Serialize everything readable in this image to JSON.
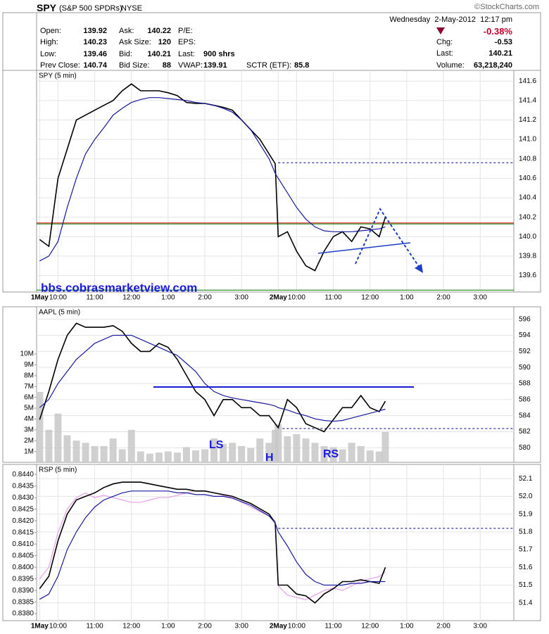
{
  "header": {
    "symbol": "SPY",
    "name": "(S&P 500 SPDRs)",
    "exchange": "NYSE",
    "credit": "©StockCharts.com",
    "date": "Wednesday  2-May-2012  12:17 pm",
    "change_pct": "-0.38%",
    "quotes": [
      [
        "Open:",
        "139.92",
        "Ask:",
        "140.22",
        "P/E:",
        ""
      ],
      [
        "High:",
        "140.23",
        "Ask Size:",
        "120",
        "EPS:",
        ""
      ],
      [
        "Low:",
        "139.46",
        "Bid:",
        "140.21",
        "Last:",
        "900 shrs"
      ],
      [
        "Prev Close:",
        "140.74",
        "Bid Size:",
        "88",
        "VWAP:",
        "139.91"
      ]
    ],
    "sctr": "SCTR (ETF):",
    "sctr_value": "85.8",
    "right": [
      [
        "Chg:",
        "-0.53"
      ],
      [
        "Last:",
        "140.21"
      ],
      [
        "Volume:",
        "63,218,240"
      ]
    ]
  },
  "chart_data": [
    {
      "type": "line",
      "title": "SPY (5 min)",
      "annotations": [
        "bbs.cobrasmarketview.com"
      ],
      "xlim": [
        -1,
        155
      ],
      "xticks": [
        {
          "value": 0,
          "label": "1May"
        },
        {
          "value": 6,
          "label": "10:00"
        },
        {
          "value": 18,
          "label": "11:00"
        },
        {
          "value": 30,
          "label": "12:00"
        },
        {
          "value": 42,
          "label": "1:00"
        },
        {
          "value": 54,
          "label": "2:00"
        },
        {
          "value": 66,
          "label": "3:00"
        },
        {
          "value": 78,
          "label": "2May"
        },
        {
          "value": 84,
          "label": "10:00"
        },
        {
          "value": 96,
          "label": "11:00"
        },
        {
          "value": 108,
          "label": "12:00"
        },
        {
          "value": 120,
          "label": "1:00"
        },
        {
          "value": 132,
          "label": "2:00"
        },
        {
          "value": 144,
          "label": "3:00"
        }
      ],
      "ylim": [
        139.43,
        141.71
      ],
      "yticks": [
        139.6,
        139.8,
        {
          "value": 140,
          "label": "140.0"
        },
        140.2,
        140.4,
        140.6,
        140.8,
        {
          "value": 141,
          "label": "141.0"
        },
        141.2,
        141.4,
        141.6
      ],
      "grid": true,
      "x": [
        0,
        3,
        6,
        9,
        12,
        15,
        18,
        21,
        24,
        27,
        30,
        33,
        36,
        39,
        42,
        45,
        48,
        51,
        54,
        57,
        60,
        63,
        66,
        69,
        72,
        75,
        77,
        78,
        81,
        84,
        87,
        90,
        93,
        96,
        99,
        102,
        105,
        108,
        111,
        113
      ],
      "series": [
        {
          "color": "#000000",
          "values": [
            139.97,
            139.9,
            140.6,
            140.9,
            141.2,
            141.25,
            141.3,
            141.35,
            141.4,
            141.5,
            141.57,
            141.5,
            141.5,
            141.5,
            141.48,
            141.45,
            141.38,
            141.37,
            141.37,
            141.35,
            141.33,
            141.3,
            141.2,
            141.1,
            141.0,
            140.85,
            140.75,
            140.0,
            140.05,
            139.85,
            139.7,
            139.65,
            139.85,
            140.0,
            140.05,
            139.95,
            140.1,
            140.08,
            140.0,
            140.2
          ]
        },
        {
          "color": "#1a1a9c",
          "values": [
            139.75,
            139.8,
            139.95,
            140.3,
            140.6,
            140.85,
            141.0,
            141.12,
            141.25,
            141.32,
            141.38,
            141.41,
            141.43,
            141.43,
            141.42,
            141.41,
            141.4,
            141.38,
            141.37,
            141.35,
            141.32,
            141.28,
            141.2,
            141.1,
            140.95,
            140.8,
            140.65,
            140.6,
            140.45,
            140.3,
            140.18,
            140.1,
            140.06,
            140.05,
            140.05,
            140.05,
            140.06,
            140.07,
            140.08,
            140.1
          ]
        }
      ],
      "hlines": [
        {
          "value": 140.14,
          "color": "#d00000"
        },
        {
          "value": 140.13,
          "color": "#008000"
        },
        {
          "value": 139.45,
          "color": "#008000"
        },
        {
          "value": 140.76,
          "color": "#00008b",
          "dash": true,
          "x": 78
        }
      ]
    },
    {
      "type": "line",
      "title": "AAPL (5 min)",
      "annotations": [
        "LS",
        "H",
        "RS"
      ],
      "xlim": [
        -1,
        155
      ],
      "ylim": [
        578.19,
        597.55
      ],
      "yticks": [
        580,
        582,
        584,
        586,
        588,
        590,
        592,
        594,
        596
      ],
      "y2lim": [
        0,
        14360000
      ],
      "y2ticks": [
        {
          "value": 1000000,
          "label": "1M"
        },
        {
          "value": 2000000,
          "label": "2M"
        },
        {
          "value": 3000000,
          "label": "3M"
        },
        {
          "value": 4000000,
          "label": "4M"
        },
        {
          "value": 5000000,
          "label": "5M"
        },
        {
          "value": 6000000,
          "label": "6M"
        },
        {
          "value": 7000000,
          "label": "7M"
        },
        {
          "value": 8000000,
          "label": "8M"
        },
        {
          "value": 9000000,
          "label": "9M"
        },
        {
          "value": 10000000,
          "label": "10M"
        }
      ],
      "grid": true,
      "x": [
        0,
        3,
        6,
        9,
        12,
        15,
        18,
        21,
        24,
        27,
        30,
        33,
        36,
        39,
        42,
        45,
        48,
        51,
        54,
        57,
        60,
        63,
        66,
        69,
        72,
        75,
        77,
        78,
        81,
        84,
        87,
        90,
        93,
        96,
        99,
        102,
        105,
        108,
        111,
        113
      ],
      "series": [
        {
          "color": "#c8c8c8",
          "axis": "y2",
          "kind": "bar",
          "values": [
            6500000,
            3000000,
            4500000,
            2500000,
            2000000,
            1800000,
            1500000,
            1500000,
            2200000,
            1200000,
            3000000,
            1000000,
            800000,
            900000,
            1000000,
            900000,
            1400000,
            1100000,
            1200000,
            2200000,
            1700000,
            1800000,
            1500000,
            1300000,
            2200000,
            1800000,
            3000000,
            3500000,
            2400000,
            2600000,
            2200000,
            1800000,
            1500000,
            1400000,
            1200000,
            1800000,
            1500000,
            1100000,
            1000000,
            2800000
          ]
        },
        {
          "color": "#000000",
          "values": [
            583.5,
            587,
            591,
            594,
            595.5,
            595,
            595,
            595,
            595.2,
            594.5,
            593,
            592,
            592,
            593,
            592.5,
            591,
            589,
            587,
            586,
            584,
            586,
            586,
            585,
            585,
            584,
            584,
            583,
            582.5,
            586,
            585,
            583,
            582.5,
            582,
            583.5,
            585,
            585,
            586.5,
            585,
            584.5,
            585.8
          ]
        },
        {
          "color": "#1a1a9c",
          "values": [
            585,
            586,
            588,
            589.5,
            591,
            592,
            593,
            593.5,
            594,
            594,
            594,
            593.5,
            593,
            592.5,
            592,
            591.5,
            590.5,
            589.5,
            588,
            587,
            586.5,
            586.2,
            586,
            585.8,
            585.6,
            585.4,
            585.2,
            585,
            584.7,
            584.3,
            584,
            583.6,
            583.4,
            583.3,
            583.4,
            583.7,
            584,
            584.3,
            584.6,
            584.8
          ]
        }
      ],
      "hlines": [
        {
          "value": 582.4,
          "color": "#00008b",
          "dash": true,
          "x": 78
        }
      ]
    },
    {
      "type": "line",
      "title": "RSP (5 min)",
      "xlim": [
        -1,
        155
      ],
      "xticks": [
        {
          "value": 0,
          "label": "1May"
        },
        {
          "value": 6,
          "label": "10:00"
        },
        {
          "value": 18,
          "label": "11:00"
        },
        {
          "value": 30,
          "label": "12:00"
        },
        {
          "value": 42,
          "label": "1:00"
        },
        {
          "value": 54,
          "label": "2:00"
        },
        {
          "value": 66,
          "label": "3:00"
        },
        {
          "value": 78,
          "label": "2May"
        },
        {
          "value": 84,
          "label": "10:00"
        },
        {
          "value": 96,
          "label": "11:00"
        },
        {
          "value": 108,
          "label": "12:00"
        },
        {
          "value": 120,
          "label": "1:00"
        },
        {
          "value": 132,
          "label": "2:00"
        },
        {
          "value": 144,
          "label": "3:00"
        }
      ],
      "ylim": [
        51.3,
        52.18
      ],
      "yticks": [
        51.4,
        51.5,
        51.6,
        51.7,
        51.8,
        51.9,
        {
          "value": 52,
          "label": "52.0"
        },
        52.1
      ],
      "y2lim": [
        0.8377,
        0.84443
      ],
      "y2ticks": [
        {
          "value": 0.838,
          "label": "0.8380"
        },
        0.8385,
        {
          "value": 0.839,
          "label": "0.8390"
        },
        0.8395,
        {
          "value": 0.84,
          "label": "0.8400"
        },
        0.8405,
        {
          "value": 0.841,
          "label": "0.8410"
        },
        0.8415,
        {
          "value": 0.842,
          "label": "0.8420"
        },
        0.8425,
        {
          "value": 0.843,
          "label": "0.8430"
        },
        0.8435,
        {
          "value": 0.844,
          "label": "0.8440"
        }
      ],
      "grid": true,
      "x": [
        0,
        3,
        6,
        9,
        12,
        15,
        18,
        21,
        24,
        27,
        30,
        33,
        36,
        39,
        42,
        45,
        48,
        51,
        54,
        57,
        60,
        63,
        66,
        69,
        72,
        75,
        77,
        78,
        81,
        84,
        87,
        90,
        93,
        96,
        99,
        102,
        105,
        108,
        111,
        113
      ],
      "series": [
        {
          "color": "#e8a0e8",
          "axis": "y2",
          "values": [
            0.8395,
            0.84,
            0.8415,
            0.8425,
            0.843,
            0.8432,
            0.843,
            0.8431,
            0.843,
            0.8429,
            0.8428,
            0.8428,
            0.8429,
            0.843,
            0.843,
            0.8431,
            0.8432,
            0.8433,
            0.8433,
            0.8432,
            0.8431,
            0.843,
            0.8428,
            0.8426,
            0.8424,
            0.8422,
            0.842,
            0.8392,
            0.8388,
            0.8387,
            0.8386,
            0.8388,
            0.839,
            0.8391,
            0.839,
            0.8392,
            0.8394,
            0.8395,
            0.8396,
            0.8398
          ]
        },
        {
          "color": "#000000",
          "values": [
            51.48,
            51.55,
            51.75,
            51.9,
            51.98,
            52.0,
            52.02,
            52.05,
            52.07,
            52.08,
            52.08,
            52.08,
            52.07,
            52.06,
            52.05,
            52.04,
            52.04,
            52.03,
            52.03,
            52.02,
            52.01,
            52.0,
            51.98,
            51.96,
            51.93,
            51.9,
            51.85,
            51.5,
            51.5,
            51.45,
            51.44,
            51.4,
            51.45,
            51.48,
            51.52,
            51.52,
            51.53,
            51.52,
            51.51,
            51.6
          ]
        },
        {
          "color": "#1a1a9c",
          "values": [
            51.42,
            51.45,
            51.55,
            51.7,
            51.8,
            51.88,
            51.94,
            51.98,
            52.0,
            52.02,
            52.03,
            52.03,
            52.03,
            52.03,
            52.03,
            52.02,
            52.02,
            52.01,
            52.01,
            52.0,
            52.0,
            51.99,
            51.97,
            51.95,
            51.92,
            51.89,
            51.85,
            51.8,
            51.72,
            51.63,
            51.56,
            51.52,
            51.5,
            51.5,
            51.5,
            51.51,
            51.51,
            51.52,
            51.52,
            51.52
          ]
        }
      ],
      "hlines": [
        {
          "value": 51.82,
          "color": "#00008b",
          "dash": true,
          "x": 78
        }
      ]
    }
  ]
}
